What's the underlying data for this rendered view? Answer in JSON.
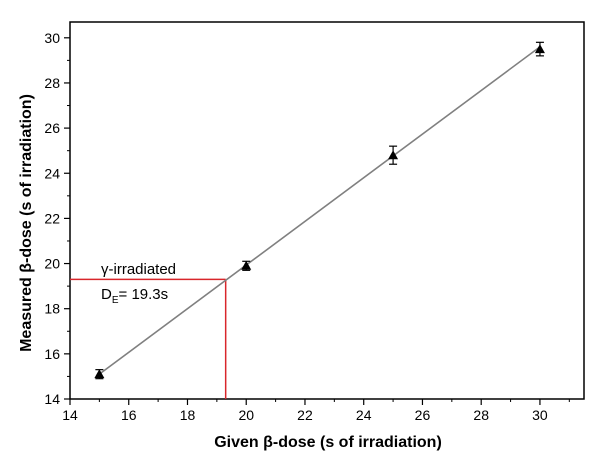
{
  "chart_data": {
    "type": "scatter",
    "xlabel": "Given β-dose (s of irradiation)",
    "ylabel": "Measured β-dose (s of irradiation)",
    "xlim": [
      14,
      31.5
    ],
    "ylim": [
      14,
      30.7
    ],
    "xticks": [
      14,
      16,
      18,
      20,
      22,
      24,
      26,
      28,
      30
    ],
    "yticks": [
      14,
      16,
      18,
      20,
      22,
      24,
      26,
      28,
      30
    ],
    "grid": false,
    "series": [
      {
        "marker": "triangle",
        "color": "#000000",
        "x": [
          15,
          20,
          25,
          30
        ],
        "y": [
          15.1,
          19.9,
          24.8,
          29.5
        ],
        "err": [
          0.2,
          0.2,
          0.4,
          0.3
        ]
      }
    ],
    "fit_line": {
      "color": "#808080",
      "x": [
        15,
        30
      ],
      "y": [
        15.1,
        29.6
      ]
    },
    "interpolation": {
      "color": "#d9262b",
      "x": 19.3,
      "y": 19.3
    },
    "annotation": {
      "line1": "γ-irradiated",
      "line2_main": "D",
      "line2_sub": "E",
      "line2_value": "= 19.3s"
    }
  }
}
